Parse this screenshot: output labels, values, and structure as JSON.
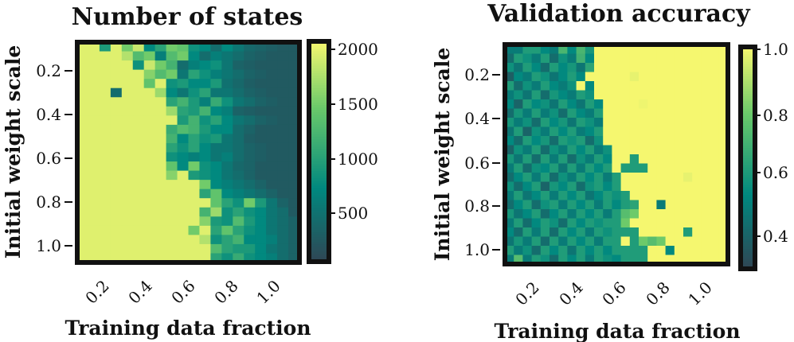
{
  "colors": {
    "low": "#2f4755",
    "teal": "#00887f",
    "green": "#6ac96a",
    "high": "#f5f76f"
  },
  "chart_data": [
    {
      "type": "heatmap",
      "title": "Number of states",
      "xlabel": "Training data fraction",
      "ylabel": "Initial weight scale",
      "x_range": [
        0.1,
        1.0
      ],
      "y_range": [
        0.1,
        1.0
      ],
      "xticks": [
        0.2,
        0.4,
        0.6,
        0.8,
        1.0
      ],
      "xtick_labels": [
        "0.2",
        "0.4",
        "0.6",
        "0.8",
        "1.0"
      ],
      "yticks": [
        0.2,
        0.4,
        0.6,
        0.8,
        1.0
      ],
      "ytick_labels": [
        "0.2",
        "0.4",
        "0.6",
        "0.8",
        "1.0"
      ],
      "colorbar": {
        "min": 0,
        "max": 2100,
        "ticks": [
          2000,
          1500,
          1000,
          500
        ],
        "tick_labels": [
          "2000",
          "1500",
          "1000",
          "500"
        ]
      },
      "grid": [
        [
          2000,
          2000,
          900,
          2000,
          1500,
          1900,
          700,
          1000,
          1500,
          1400,
          800,
          700,
          400,
          700,
          500,
          350,
          300,
          250,
          200,
          200
        ],
        [
          2000,
          2000,
          2000,
          2000,
          1800,
          1300,
          1500,
          600,
          1300,
          1500,
          700,
          400,
          600,
          500,
          400,
          300,
          250,
          200,
          200,
          200
        ],
        [
          2000,
          2000,
          2000,
          2000,
          2000,
          800,
          1900,
          1500,
          1200,
          400,
          600,
          700,
          800,
          500,
          300,
          250,
          200,
          200,
          200,
          200
        ],
        [
          2000,
          2000,
          2000,
          2000,
          2000,
          2000,
          1600,
          1300,
          1500,
          500,
          1000,
          800,
          600,
          500,
          400,
          300,
          250,
          200,
          200,
          200
        ],
        [
          2000,
          2000,
          2000,
          2000,
          2000,
          2000,
          1400,
          2000,
          800,
          900,
          700,
          700,
          900,
          450,
          350,
          250,
          200,
          200,
          200,
          200
        ],
        [
          2000,
          2000,
          2000,
          400,
          2000,
          2000,
          2000,
          1700,
          700,
          500,
          800,
          1000,
          500,
          500,
          400,
          300,
          250,
          200,
          200,
          200
        ],
        [
          2000,
          2000,
          2000,
          2000,
          2000,
          2000,
          2000,
          2000,
          1000,
          1200,
          900,
          600,
          1100,
          800,
          500,
          400,
          300,
          250,
          200,
          200
        ],
        [
          2000,
          2000,
          2000,
          2000,
          2000,
          2000,
          2000,
          2000,
          1700,
          1000,
          900,
          1200,
          700,
          600,
          300,
          250,
          200,
          200,
          200,
          200
        ],
        [
          2000,
          2000,
          2000,
          2000,
          2000,
          2000,
          2000,
          2000,
          2000,
          900,
          1200,
          800,
          1000,
          700,
          500,
          400,
          300,
          250,
          200,
          200
        ],
        [
          2000,
          2000,
          2000,
          2000,
          2000,
          2000,
          2000,
          2000,
          1100,
          1300,
          1200,
          900,
          700,
          700,
          400,
          300,
          200,
          200,
          200,
          200
        ],
        [
          2000,
          2000,
          2000,
          2000,
          2000,
          2000,
          2000,
          2000,
          1200,
          700,
          1000,
          800,
          900,
          500,
          400,
          250,
          200,
          200,
          200,
          200
        ],
        [
          2000,
          2000,
          2000,
          2000,
          2000,
          2000,
          2000,
          2000,
          1000,
          800,
          1000,
          700,
          500,
          500,
          400,
          300,
          250,
          200,
          200,
          200
        ],
        [
          2000,
          2000,
          2000,
          2000,
          2000,
          2000,
          2000,
          2000,
          800,
          700,
          600,
          700,
          500,
          600,
          400,
          300,
          250,
          200,
          200,
          200
        ],
        [
          2000,
          2000,
          2000,
          2000,
          2000,
          2000,
          2000,
          2000,
          1400,
          700,
          1500,
          800,
          700,
          500,
          350,
          300,
          200,
          200,
          200,
          200
        ],
        [
          2000,
          2000,
          2000,
          2000,
          2000,
          2000,
          2000,
          2000,
          1600,
          2000,
          900,
          800,
          700,
          500,
          400,
          300,
          200,
          200,
          200,
          200
        ],
        [
          2000,
          2000,
          2000,
          2000,
          2000,
          2000,
          2000,
          2000,
          2000,
          2000,
          2000,
          1500,
          700,
          600,
          500,
          400,
          300,
          200,
          200,
          200
        ],
        [
          2000,
          2000,
          2000,
          2000,
          2000,
          2000,
          2000,
          2000,
          2000,
          2000,
          2000,
          1000,
          1400,
          700,
          600,
          500,
          400,
          300,
          200,
          200
        ],
        [
          2000,
          2000,
          2000,
          2000,
          2000,
          2000,
          2000,
          2000,
          2000,
          2000,
          2000,
          2000,
          1400,
          1000,
          800,
          1500,
          900,
          500,
          300,
          200
        ],
        [
          2000,
          2000,
          2000,
          2000,
          2000,
          2000,
          2000,
          2000,
          2000,
          2000,
          2000,
          1200,
          1700,
          800,
          1000,
          800,
          700,
          500,
          400,
          200
        ],
        [
          2000,
          2000,
          2000,
          2000,
          2000,
          2000,
          2000,
          2000,
          2000,
          2000,
          2000,
          1600,
          900,
          800,
          1300,
          900,
          700,
          500,
          400,
          300
        ],
        [
          2000,
          2000,
          2000,
          2000,
          2000,
          2000,
          2000,
          2000,
          2000,
          2000,
          1500,
          2000,
          1000,
          1400,
          1000,
          800,
          700,
          500,
          400,
          300
        ],
        [
          2000,
          2000,
          2000,
          2000,
          2000,
          2000,
          2000,
          2000,
          2000,
          2000,
          2000,
          1800,
          800,
          1000,
          1200,
          700,
          700,
          600,
          400,
          300
        ],
        [
          2000,
          2000,
          2000,
          2000,
          2000,
          2000,
          2000,
          2000,
          2000,
          2000,
          2000,
          2000,
          1300,
          1000,
          900,
          900,
          700,
          500,
          400,
          300
        ],
        [
          2000,
          2000,
          2000,
          2000,
          2000,
          2000,
          2000,
          2000,
          2000,
          2000,
          2000,
          2000,
          1000,
          800,
          1100,
          800,
          700,
          600,
          400,
          300
        ]
      ]
    },
    {
      "type": "heatmap",
      "title": "Validation accuracy",
      "xlabel": "Training data fraction",
      "ylabel": "Initial weight scale",
      "x_range": [
        0.1,
        1.0
      ],
      "y_range": [
        0.1,
        1.0
      ],
      "xticks": [
        0.2,
        0.4,
        0.6,
        0.8,
        1.0
      ],
      "xtick_labels": [
        "0.2",
        "0.4",
        "0.6",
        "0.8",
        "1.0"
      ],
      "yticks": [
        0.2,
        0.4,
        0.6,
        0.8,
        1.0
      ],
      "ytick_labels": [
        "0.2",
        "0.4",
        "0.6",
        "0.8",
        "1.0"
      ],
      "colorbar": {
        "min": 0.32,
        "max": 1.0,
        "ticks": [
          1.0,
          0.8,
          0.6,
          0.4
        ],
        "tick_labels": [
          "1.0",
          "0.8",
          "0.6",
          "0.4"
        ]
      },
      "grid": [
        [
          0.5,
          0.5,
          0.62,
          0.62,
          0.55,
          0.5,
          0.72,
          0.55,
          0.72,
          0.6,
          1.0,
          1.0,
          1.0,
          1.0,
          1.0,
          1.0,
          1.0,
          1.0,
          1.0,
          1.0,
          1.0,
          1.0,
          1.0,
          1.0,
          1.0
        ],
        [
          0.45,
          0.62,
          0.58,
          0.5,
          0.62,
          0.45,
          0.58,
          0.5,
          0.7,
          0.55,
          1.0,
          1.0,
          1.0,
          1.0,
          1.0,
          1.0,
          1.0,
          1.0,
          1.0,
          1.0,
          1.0,
          1.0,
          1.0,
          1.0,
          1.0
        ],
        [
          0.58,
          0.48,
          0.62,
          0.55,
          0.45,
          0.62,
          0.55,
          0.6,
          0.48,
          0.65,
          1.0,
          1.0,
          1.0,
          1.0,
          1.0,
          1.0,
          1.0,
          1.0,
          1.0,
          1.0,
          1.0,
          1.0,
          1.0,
          1.0,
          1.0
        ],
        [
          0.4,
          0.55,
          0.5,
          0.62,
          0.58,
          0.48,
          0.55,
          0.62,
          0.55,
          1.0,
          1.0,
          1.0,
          1.0,
          1.0,
          0.98,
          1.0,
          1.0,
          1.0,
          1.0,
          1.0,
          1.0,
          1.0,
          1.0,
          1.0,
          1.0
        ],
        [
          0.62,
          0.45,
          0.58,
          0.5,
          0.62,
          0.55,
          0.5,
          0.58,
          1.0,
          0.55,
          1.0,
          1.0,
          1.0,
          1.0,
          1.0,
          1.0,
          1.0,
          1.0,
          1.0,
          1.0,
          1.0,
          1.0,
          1.0,
          1.0,
          1.0
        ],
        [
          0.5,
          0.58,
          0.48,
          0.62,
          0.45,
          0.6,
          0.55,
          0.5,
          0.62,
          0.58,
          1.0,
          1.0,
          1.0,
          1.0,
          1.0,
          1.0,
          1.0,
          1.0,
          1.0,
          1.0,
          1.0,
          1.0,
          1.0,
          1.0,
          1.0
        ],
        [
          0.55,
          0.42,
          0.62,
          0.55,
          0.58,
          0.48,
          0.62,
          0.55,
          0.48,
          0.62,
          0.55,
          1.0,
          1.0,
          1.0,
          1.0,
          0.99,
          1.0,
          1.0,
          1.0,
          1.0,
          1.0,
          1.0,
          1.0,
          1.0,
          1.0
        ],
        [
          0.45,
          0.6,
          0.5,
          0.62,
          0.5,
          0.58,
          0.45,
          0.62,
          0.55,
          0.5,
          0.62,
          1.0,
          1.0,
          1.0,
          1.0,
          1.0,
          1.0,
          1.0,
          1.0,
          1.0,
          1.0,
          1.0,
          1.0,
          1.0,
          1.0
        ],
        [
          0.6,
          0.5,
          0.58,
          0.45,
          0.62,
          0.55,
          0.6,
          0.48,
          0.62,
          0.58,
          0.5,
          1.0,
          1.0,
          1.0,
          1.0,
          1.0,
          1.0,
          1.0,
          1.0,
          1.0,
          1.0,
          1.0,
          1.0,
          1.0,
          1.0
        ],
        [
          0.48,
          0.62,
          0.42,
          0.58,
          0.5,
          0.62,
          0.55,
          0.62,
          0.5,
          0.55,
          0.62,
          1.0,
          1.0,
          1.0,
          1.0,
          1.0,
          1.0,
          1.0,
          1.0,
          1.0,
          1.0,
          1.0,
          1.0,
          1.0,
          1.0
        ],
        [
          0.55,
          0.45,
          0.62,
          0.55,
          0.6,
          0.45,
          0.62,
          0.58,
          0.62,
          0.45,
          0.58,
          1.0,
          1.0,
          1.0,
          1.0,
          1.0,
          1.0,
          1.0,
          1.0,
          1.0,
          1.0,
          1.0,
          1.0,
          1.0,
          1.0
        ],
        [
          0.42,
          0.58,
          0.5,
          0.62,
          0.45,
          0.58,
          0.5,
          0.62,
          0.55,
          0.62,
          0.5,
          0.58,
          1.0,
          1.0,
          1.0,
          1.0,
          1.0,
          1.0,
          1.0,
          1.0,
          1.0,
          1.0,
          1.0,
          1.0,
          1.0
        ],
        [
          0.6,
          0.48,
          0.62,
          0.45,
          0.62,
          0.5,
          0.62,
          0.45,
          0.58,
          0.5,
          0.62,
          0.55,
          1.0,
          1.0,
          0.62,
          1.0,
          1.0,
          1.0,
          1.0,
          1.0,
          1.0,
          1.0,
          1.0,
          1.0,
          1.0
        ],
        [
          0.5,
          0.62,
          0.45,
          0.58,
          0.55,
          0.62,
          0.48,
          0.62,
          0.5,
          0.62,
          0.55,
          0.62,
          1.0,
          0.62,
          0.62,
          0.62,
          1.0,
          1.0,
          1.0,
          1.0,
          1.0,
          1.0,
          1.0,
          1.0,
          1.0
        ],
        [
          0.45,
          0.55,
          0.62,
          0.5,
          0.62,
          0.45,
          0.58,
          0.5,
          0.62,
          0.55,
          0.62,
          0.5,
          0.62,
          1.0,
          1.0,
          1.0,
          1.0,
          1.0,
          1.0,
          1.0,
          0.98,
          1.0,
          1.0,
          1.0,
          1.0
        ],
        [
          0.58,
          0.45,
          0.55,
          0.62,
          0.42,
          0.6,
          0.55,
          0.62,
          0.45,
          0.58,
          0.62,
          0.55,
          0.62,
          1.0,
          1.0,
          1.0,
          1.0,
          1.0,
          1.0,
          1.0,
          1.0,
          1.0,
          1.0,
          1.0,
          1.0
        ],
        [
          0.5,
          0.62,
          0.48,
          0.55,
          0.62,
          0.5,
          0.62,
          0.55,
          0.62,
          0.48,
          0.55,
          0.62,
          0.58,
          0.62,
          1.0,
          1.0,
          1.0,
          1.0,
          1.0,
          1.0,
          1.0,
          1.0,
          1.0,
          1.0,
          1.0
        ],
        [
          0.45,
          0.55,
          0.62,
          0.45,
          0.58,
          0.62,
          0.5,
          0.62,
          0.55,
          0.62,
          0.5,
          0.62,
          0.55,
          0.62,
          0.65,
          1.0,
          1.0,
          0.5,
          1.0,
          1.0,
          1.0,
          1.0,
          1.0,
          1.0,
          1.0
        ],
        [
          0.6,
          0.48,
          0.55,
          0.62,
          0.45,
          0.55,
          0.62,
          0.5,
          0.62,
          0.55,
          0.62,
          0.5,
          0.62,
          0.75,
          0.8,
          1.0,
          1.0,
          1.0,
          1.0,
          1.0,
          1.0,
          1.0,
          1.0,
          1.0,
          1.0
        ],
        [
          0.5,
          0.62,
          0.45,
          0.55,
          0.62,
          0.58,
          0.45,
          0.62,
          0.55,
          0.62,
          0.58,
          0.62,
          0.62,
          0.8,
          1.0,
          1.0,
          1.0,
          1.0,
          1.0,
          1.0,
          1.0,
          1.0,
          1.0,
          1.0,
          1.0
        ],
        [
          0.55,
          0.45,
          0.62,
          0.5,
          0.62,
          0.45,
          0.62,
          0.55,
          0.62,
          0.5,
          0.62,
          0.58,
          0.62,
          0.62,
          0.62,
          1.0,
          1.0,
          1.0,
          1.0,
          1.0,
          0.62,
          1.0,
          1.0,
          1.0,
          1.0
        ],
        [
          0.48,
          0.6,
          0.5,
          0.62,
          0.45,
          0.62,
          0.5,
          0.62,
          0.55,
          0.62,
          0.5,
          0.62,
          0.62,
          1.0,
          0.62,
          0.8,
          0.75,
          0.8,
          1.0,
          1.0,
          1.0,
          1.0,
          1.0,
          1.0,
          1.0
        ],
        [
          0.62,
          0.5,
          0.58,
          0.45,
          0.62,
          0.55,
          0.62,
          0.48,
          0.62,
          0.55,
          0.62,
          0.55,
          0.62,
          0.62,
          0.62,
          0.62,
          1.0,
          1.0,
          0.55,
          1.0,
          1.0,
          1.0,
          1.0,
          1.0,
          1.0
        ],
        [
          0.5,
          0.75,
          0.5,
          0.62,
          0.58,
          0.45,
          0.62,
          0.55,
          0.62,
          0.5,
          0.62,
          0.58,
          0.55,
          0.62,
          0.62,
          0.62,
          1.0,
          1.0,
          1.0,
          1.0,
          1.0,
          1.0,
          1.0,
          1.0,
          1.0
        ]
      ]
    }
  ]
}
